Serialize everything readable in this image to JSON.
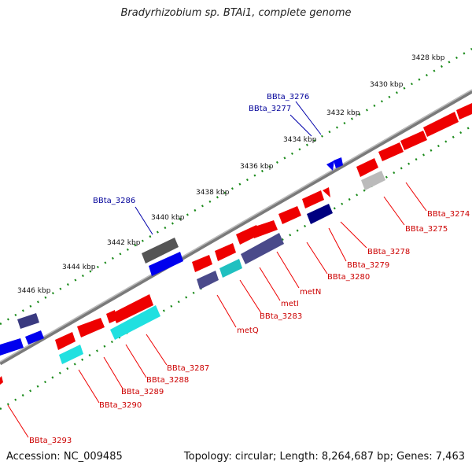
{
  "title": "Bradyrhizobium sp. BTAi1, complete genome",
  "footer": {
    "accession": "Accession: NC_009485",
    "summary": "Topology: circular; Length: 8,264,687 bp; Genes: 7,463"
  },
  "colors": {
    "backbone": "#808080",
    "forward_strand": "#ff0000",
    "reverse_strand": "#0000ff",
    "forward_label": "#cc0000",
    "reverse_label": "#000099",
    "tick": "#1a8a1a"
  },
  "kbp_ticks": [
    "3428 kbp",
    "3430 kbp",
    "3432 kbp",
    "3434 kbp",
    "3436 kbp",
    "3438 kbp",
    "3440 kbp",
    "3442 kbp",
    "3444 kbp",
    "3446 kbp"
  ],
  "outer_gene_labels": [
    "BBta_3276",
    "BBta_3277",
    "BBta_3286"
  ],
  "inner_gene_labels": [
    "BBta_3274",
    "BBta_3275",
    "BBta_3278",
    "BBta_3279",
    "BBta_3280",
    "metN",
    "metI",
    "BBta_3283",
    "metQ",
    "BBta_3287",
    "BBta_3288",
    "BBta_3289",
    "BBta_3290",
    "BBta_3293"
  ]
}
